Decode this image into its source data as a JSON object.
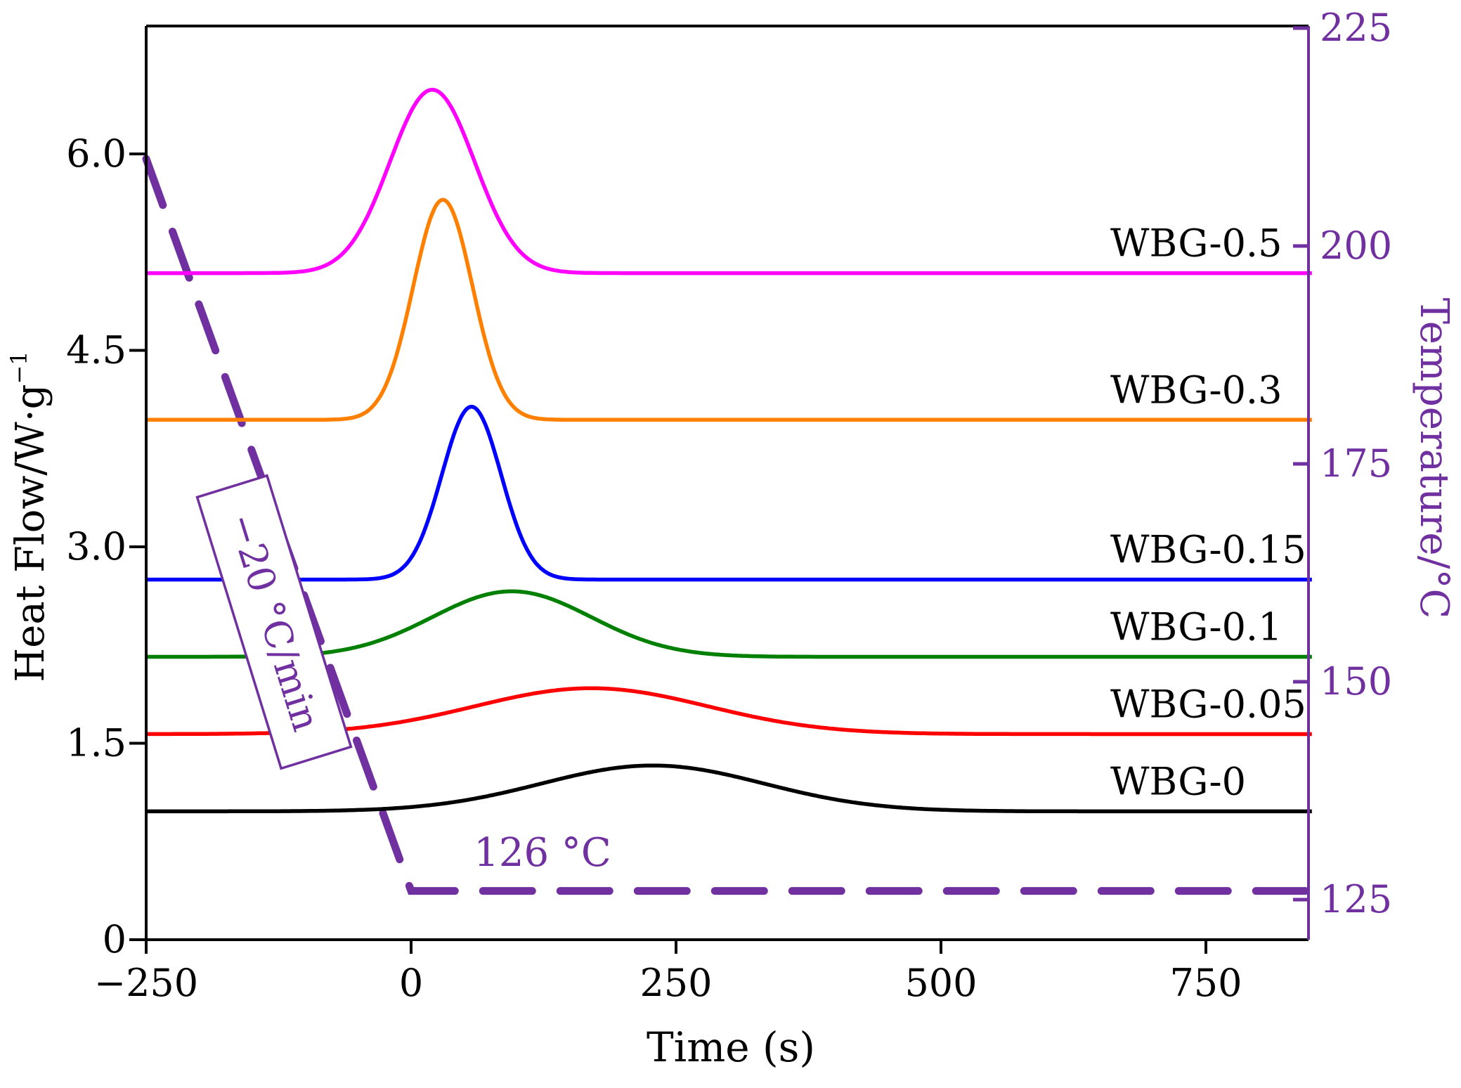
{
  "chart_data": {
    "type": "line",
    "xlabel": "Time (s)",
    "ylabel": "Heat Flow/W·g",
    "ylabel_sup": "−1",
    "y2label": "Temperature/°C",
    "xlim": [
      -250,
      850
    ],
    "ylim": [
      0,
      7.0
    ],
    "y2lim": [
      120,
      225
    ],
    "xticks": [
      -250,
      0,
      250,
      500,
      750
    ],
    "xtick_labels": [
      "−250",
      "0",
      "250",
      "500",
      "750"
    ],
    "yticks": [
      0,
      1.5,
      3.0,
      4.5,
      6.0
    ],
    "ytick_labels": [
      "0",
      "1.5",
      "3.0",
      "4.5",
      "6.0"
    ],
    "y2ticks": [
      125,
      150,
      175,
      200,
      225
    ],
    "y2tick_labels": [
      "125",
      "150",
      "175",
      "200",
      "225"
    ],
    "grid": false,
    "legend": "none (series labelled inline at right)",
    "series": [
      {
        "name": "WBG-0",
        "color": "#000000",
        "baseline": 0.98,
        "peak_x": 228,
        "peak_height": 0.35,
        "width": 105
      },
      {
        "name": "WBG-0.05",
        "color": "#ff0000",
        "baseline": 1.57,
        "peak_x": 170,
        "peak_height": 0.35,
        "width": 110
      },
      {
        "name": "WBG-0.1",
        "color": "#008000",
        "baseline": 2.16,
        "peak_x": 95,
        "peak_height": 0.5,
        "width": 75
      },
      {
        "name": "WBG-0.15",
        "color": "#0000ff",
        "baseline": 2.75,
        "peak_x": 57,
        "peak_height": 1.32,
        "width": 28
      },
      {
        "name": "WBG-0.3",
        "color": "#ff8000",
        "baseline": 3.97,
        "peak_x": 30,
        "peak_height": 1.68,
        "width": 28
      },
      {
        "name": "WBG-0.5",
        "color": "#ff00ff",
        "baseline": 5.09,
        "peak_x": 20,
        "peak_height": 1.4,
        "width": 40
      }
    ],
    "temperature_profile": {
      "color": "#7030a0",
      "points": [
        [
          -250,
          210
        ],
        [
          0,
          126
        ],
        [
          850,
          126
        ]
      ],
      "style": "dashed"
    },
    "annotations": {
      "rate_box": "−20 °C/min",
      "hold_label": "126 °C"
    }
  }
}
